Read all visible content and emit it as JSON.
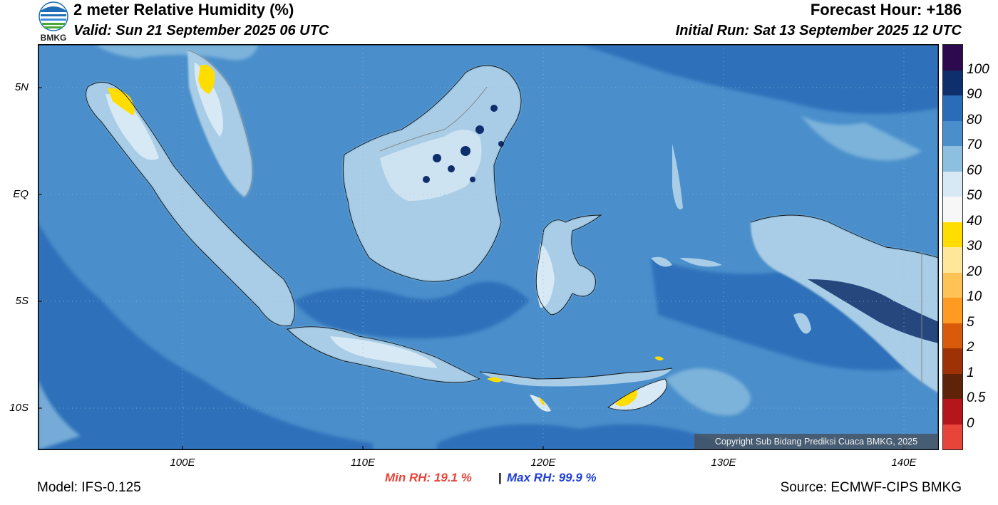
{
  "header": {
    "title": "2 meter Relative Humidity (%)",
    "valid": "Valid: Sun 21 September 2025 06 UTC",
    "forecast_hour": "Forecast Hour: +186",
    "initial_run": "Initial Run: Sat 13 September 2025 12 UTC"
  },
  "logo": {
    "text": "BMKG",
    "icon": "bmkg-logo-icon"
  },
  "map": {
    "lat_labels": [
      "5N",
      "EQ",
      "5S",
      "10S"
    ],
    "lon_labels": [
      "100E",
      "110E",
      "120E",
      "130E",
      "140E"
    ],
    "extent": {
      "lon_min": 92,
      "lon_max": 142,
      "lat_min": -12,
      "lat_max": 7
    },
    "ocean_color": "#4a8fcb",
    "land_color": "#a9cde6",
    "low_rh_color": "#ffdd00"
  },
  "colorbar": {
    "labels": [
      "100",
      "90",
      "80",
      "70",
      "60",
      "50",
      "40",
      "30",
      "20",
      "10",
      "5",
      "2",
      "1",
      "0.5",
      "0"
    ],
    "colors": [
      "#2d0a4d",
      "#0e2f6b",
      "#2a6cb8",
      "#4a8fcb",
      "#8dbfe0",
      "#d7e9f5",
      "#f7f7f7",
      "#ffdd00",
      "#ffe79a",
      "#ffc355",
      "#ff9b22",
      "#da5a0b",
      "#9e3206",
      "#5e2309",
      "#b5161c",
      "#e8443a"
    ]
  },
  "footer": {
    "min_rh": "Min RH:  19.1 %",
    "separator": "|",
    "max_rh": "Max RH:  99.9 %",
    "model": "Model: IFS-0.125",
    "source": "Source: ECMWF-CIPS BMKG",
    "copyright": "Copyright Sub Bidang Prediksi Cuaca BMKG, 2025"
  }
}
